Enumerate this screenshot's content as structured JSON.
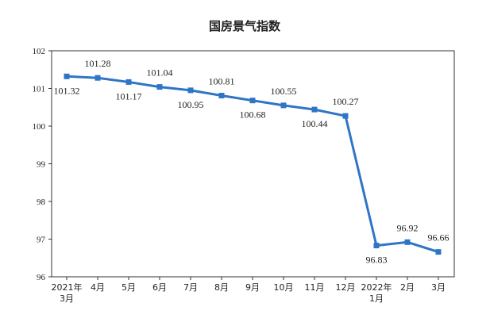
{
  "chart_data": {
    "type": "line",
    "title": "国房景气指数",
    "xlabel": "",
    "ylabel": "",
    "categories": [
      [
        "2021年",
        "3月"
      ],
      [
        "4月"
      ],
      [
        "5月"
      ],
      [
        "6月"
      ],
      [
        "7月"
      ],
      [
        "8月"
      ],
      [
        "9月"
      ],
      [
        "10月"
      ],
      [
        "11月"
      ],
      [
        "12月"
      ],
      [
        "2022年",
        "1月"
      ],
      [
        "2月"
      ],
      [
        "3月"
      ]
    ],
    "series": [
      {
        "values": [
          101.32,
          101.28,
          101.17,
          101.04,
          100.95,
          100.81,
          100.68,
          100.55,
          100.44,
          100.27,
          96.83,
          96.92,
          96.66
        ],
        "labels": [
          "101.32",
          "101.28",
          "101.17",
          "101.04",
          "100.95",
          "100.81",
          "100.68",
          "100.55",
          "100.44",
          "100.27",
          "96.83",
          "96.92",
          "96.66"
        ],
        "label_positions": [
          "below",
          "above",
          "below",
          "above",
          "below",
          "above",
          "below",
          "above",
          "below",
          "above",
          "below",
          "above",
          "above"
        ],
        "color": "#2e75c5"
      }
    ],
    "yticks": [
      96,
      97,
      98,
      99,
      100,
      101,
      102
    ],
    "ylim": [
      96,
      102
    ],
    "grid": false,
    "legend": "none"
  }
}
